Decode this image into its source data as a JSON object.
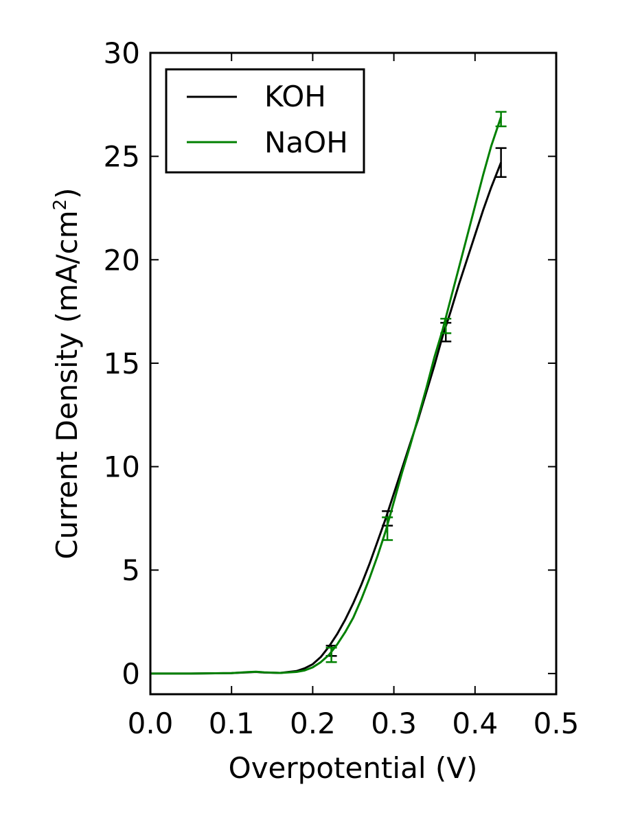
{
  "chart_data": {
    "type": "line",
    "xlabel": "Overpotential (V)",
    "ylabel": {
      "text": "Current Density (mA/cm",
      "superscript": "2",
      "suffix": ")"
    },
    "xlim": [
      0.0,
      0.5
    ],
    "ylim": [
      -1,
      30
    ],
    "x_ticks": [
      0.0,
      0.1,
      0.2,
      0.3,
      0.4,
      0.5
    ],
    "x_tick_labels": [
      "0.0",
      "0.1",
      "0.2",
      "0.3",
      "0.4",
      "0.5"
    ],
    "y_ticks": [
      0,
      5,
      10,
      15,
      20,
      25,
      30
    ],
    "y_tick_labels": [
      "0",
      "5",
      "10",
      "15",
      "20",
      "25",
      "30"
    ],
    "grid": false,
    "legend_position": "top-left",
    "series": [
      {
        "name": "KOH",
        "color": "#000000",
        "points": [
          [
            0.0,
            0.0
          ],
          [
            0.05,
            0.0
          ],
          [
            0.1,
            0.02
          ],
          [
            0.12,
            0.06
          ],
          [
            0.13,
            0.08
          ],
          [
            0.14,
            0.05
          ],
          [
            0.16,
            0.03
          ],
          [
            0.18,
            0.12
          ],
          [
            0.19,
            0.25
          ],
          [
            0.2,
            0.45
          ],
          [
            0.21,
            0.8
          ],
          [
            0.22,
            1.3
          ],
          [
            0.23,
            1.9
          ],
          [
            0.24,
            2.6
          ],
          [
            0.25,
            3.4
          ],
          [
            0.26,
            4.3
          ],
          [
            0.27,
            5.3
          ],
          [
            0.28,
            6.4
          ],
          [
            0.29,
            7.5
          ],
          [
            0.3,
            8.7
          ],
          [
            0.31,
            9.9
          ],
          [
            0.32,
            11.1
          ],
          [
            0.33,
            12.3
          ],
          [
            0.34,
            13.6
          ],
          [
            0.35,
            14.9
          ],
          [
            0.36,
            16.3
          ],
          [
            0.37,
            17.5
          ],
          [
            0.38,
            18.8
          ],
          [
            0.39,
            20.0
          ],
          [
            0.4,
            21.2
          ],
          [
            0.41,
            22.4
          ],
          [
            0.42,
            23.5
          ],
          [
            0.432,
            24.7
          ]
        ],
        "error_bars": [
          {
            "x": 0.223,
            "y": 1.1,
            "err": 0.25
          },
          {
            "x": 0.292,
            "y": 7.5,
            "err": 0.35
          },
          {
            "x": 0.364,
            "y": 16.5,
            "err": 0.45
          },
          {
            "x": 0.432,
            "y": 24.7,
            "err": 0.7
          }
        ]
      },
      {
        "name": "NaOH",
        "color": "#008000",
        "points": [
          [
            0.0,
            0.0
          ],
          [
            0.05,
            0.0
          ],
          [
            0.1,
            0.02
          ],
          [
            0.12,
            0.07
          ],
          [
            0.13,
            0.09
          ],
          [
            0.14,
            0.06
          ],
          [
            0.16,
            0.03
          ],
          [
            0.18,
            0.08
          ],
          [
            0.19,
            0.15
          ],
          [
            0.2,
            0.3
          ],
          [
            0.21,
            0.55
          ],
          [
            0.22,
            0.9
          ],
          [
            0.23,
            1.4
          ],
          [
            0.24,
            2.0
          ],
          [
            0.25,
            2.7
          ],
          [
            0.26,
            3.6
          ],
          [
            0.27,
            4.6
          ],
          [
            0.28,
            5.7
          ],
          [
            0.29,
            6.9
          ],
          [
            0.3,
            8.3
          ],
          [
            0.31,
            9.7
          ],
          [
            0.32,
            11.0
          ],
          [
            0.33,
            12.4
          ],
          [
            0.34,
            13.8
          ],
          [
            0.35,
            15.3
          ],
          [
            0.36,
            16.6
          ],
          [
            0.37,
            18.1
          ],
          [
            0.38,
            19.6
          ],
          [
            0.39,
            21.1
          ],
          [
            0.4,
            22.6
          ],
          [
            0.41,
            24.1
          ],
          [
            0.42,
            25.5
          ],
          [
            0.432,
            26.9
          ]
        ],
        "error_bars": [
          {
            "x": 0.223,
            "y": 0.9,
            "err": 0.35
          },
          {
            "x": 0.292,
            "y": 7.0,
            "err": 0.55
          },
          {
            "x": 0.364,
            "y": 16.8,
            "err": 0.35
          },
          {
            "x": 0.432,
            "y": 26.8,
            "err": 0.35
          }
        ]
      }
    ]
  }
}
